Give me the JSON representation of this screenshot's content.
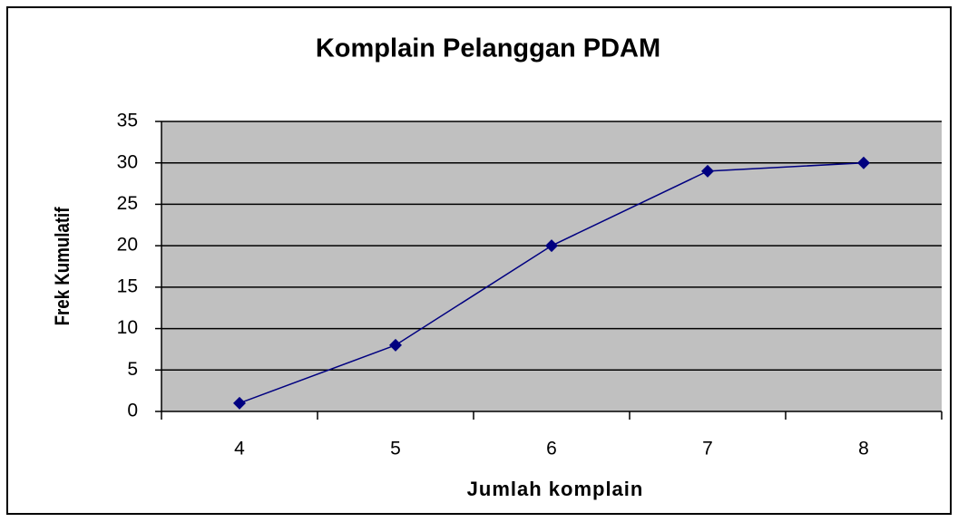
{
  "chart_data": {
    "type": "line",
    "title": "Komplain Pelanggan PDAM",
    "xlabel": "Jumlah komplain",
    "ylabel": "Frek Kumulatif",
    "categories": [
      "4",
      "5",
      "6",
      "7",
      "8"
    ],
    "values": [
      1,
      8,
      20,
      29,
      30
    ],
    "color": "#000080",
    "ylim": [
      0,
      35
    ],
    "yticks": [
      0,
      5,
      10,
      15,
      20,
      25,
      30,
      35
    ],
    "grid": true
  }
}
